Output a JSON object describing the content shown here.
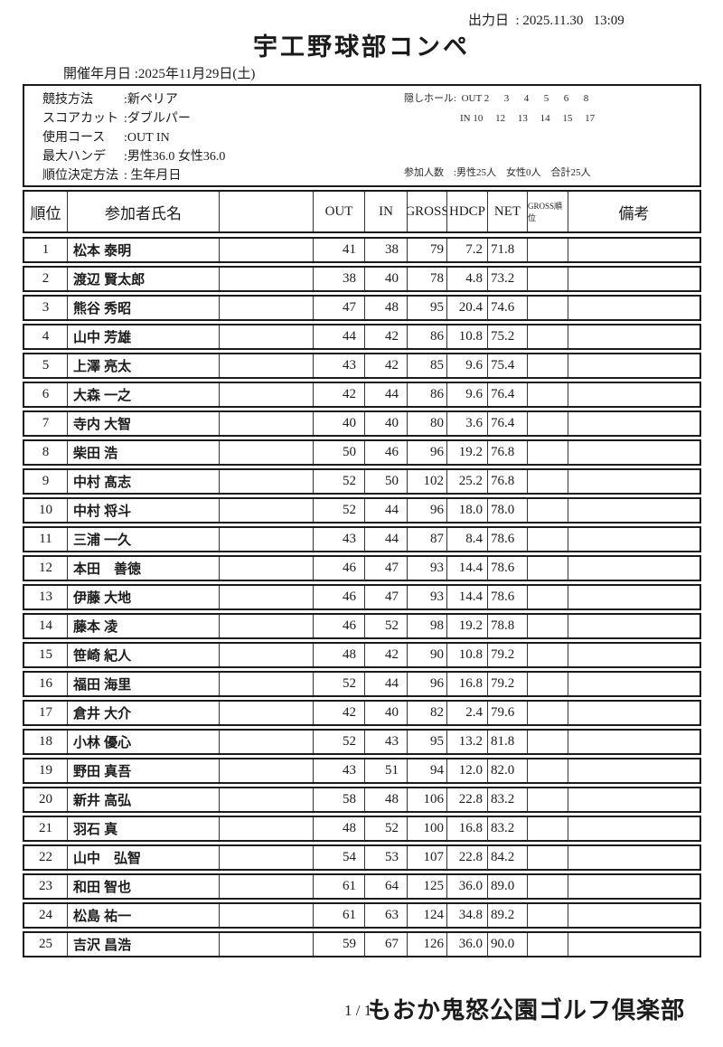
{
  "meta": {
    "print_date": "出力日  : 2025.11.30   13:09"
  },
  "title": "宇工野球部コンペ",
  "event_date": "開催年月日 :2025年11月29日(土)",
  "info": {
    "items": [
      {
        "label": "競技方法",
        "value": ":新ペリア"
      },
      {
        "label": "スコアカット",
        "value": ":ダブルパー"
      },
      {
        "label": "使用コース",
        "value": ":OUT IN"
      },
      {
        "label": "最大ハンデ",
        "value": ":男性36.0 女性36.0"
      },
      {
        "label": "順位決定方法",
        "value": ": 生年月日"
      }
    ],
    "hidden_holes": {
      "label": "隠しホール:",
      "out_line": "OUT 2      3      4      5      6      8",
      "in_line": "IN 10     12     13     14     15     17"
    },
    "participants": "参加人数　:男性25人　女性0人　合計25人"
  },
  "table": {
    "headers": {
      "rank": "順位",
      "name": "参加者氏名",
      "blank": "",
      "out": "OUT",
      "in": "IN",
      "gross": "GROSS",
      "hdcp": "HDCP",
      "net": "NET",
      "gross_rank": "GROSS順位",
      "remarks": "備考"
    },
    "rows": [
      {
        "rank": "1",
        "name": "松本 泰明",
        "out": "41",
        "in": "38",
        "gross": "79",
        "hdcp": "7.2",
        "net": "71.8"
      },
      {
        "rank": "2",
        "name": "渡辺 賢太郎",
        "out": "38",
        "in": "40",
        "gross": "78",
        "hdcp": "4.8",
        "net": "73.2"
      },
      {
        "rank": "3",
        "name": "熊谷 秀昭",
        "out": "47",
        "in": "48",
        "gross": "95",
        "hdcp": "20.4",
        "net": "74.6"
      },
      {
        "rank": "4",
        "name": "山中 芳雄",
        "out": "44",
        "in": "42",
        "gross": "86",
        "hdcp": "10.8",
        "net": "75.2"
      },
      {
        "rank": "5",
        "name": "上澤 亮太",
        "out": "43",
        "in": "42",
        "gross": "85",
        "hdcp": "9.6",
        "net": "75.4"
      },
      {
        "rank": "6",
        "name": "大森 一之",
        "out": "42",
        "in": "44",
        "gross": "86",
        "hdcp": "9.6",
        "net": "76.4"
      },
      {
        "rank": "7",
        "name": "寺内 大智",
        "out": "40",
        "in": "40",
        "gross": "80",
        "hdcp": "3.6",
        "net": "76.4"
      },
      {
        "rank": "8",
        "name": "柴田 浩",
        "out": "50",
        "in": "46",
        "gross": "96",
        "hdcp": "19.2",
        "net": "76.8"
      },
      {
        "rank": "9",
        "name": "中村 髙志",
        "out": "52",
        "in": "50",
        "gross": "102",
        "hdcp": "25.2",
        "net": "76.8"
      },
      {
        "rank": "10",
        "name": "中村 将斗",
        "out": "52",
        "in": "44",
        "gross": "96",
        "hdcp": "18.0",
        "net": "78.0"
      },
      {
        "rank": "11",
        "name": "三浦 一久",
        "out": "43",
        "in": "44",
        "gross": "87",
        "hdcp": "8.4",
        "net": "78.6"
      },
      {
        "rank": "12",
        "name": "本田　善徳",
        "out": "46",
        "in": "47",
        "gross": "93",
        "hdcp": "14.4",
        "net": "78.6"
      },
      {
        "rank": "13",
        "name": "伊藤 大地",
        "out": "46",
        "in": "47",
        "gross": "93",
        "hdcp": "14.4",
        "net": "78.6"
      },
      {
        "rank": "14",
        "name": "藤本 凌",
        "out": "46",
        "in": "52",
        "gross": "98",
        "hdcp": "19.2",
        "net": "78.8"
      },
      {
        "rank": "15",
        "name": "笹崎 紀人",
        "out": "48",
        "in": "42",
        "gross": "90",
        "hdcp": "10.8",
        "net": "79.2"
      },
      {
        "rank": "16",
        "name": "福田 海里",
        "out": "52",
        "in": "44",
        "gross": "96",
        "hdcp": "16.8",
        "net": "79.2"
      },
      {
        "rank": "17",
        "name": "倉井 大介",
        "out": "42",
        "in": "40",
        "gross": "82",
        "hdcp": "2.4",
        "net": "79.6"
      },
      {
        "rank": "18",
        "name": "小林 優心",
        "out": "52",
        "in": "43",
        "gross": "95",
        "hdcp": "13.2",
        "net": "81.8"
      },
      {
        "rank": "19",
        "name": "野田 真吾",
        "out": "43",
        "in": "51",
        "gross": "94",
        "hdcp": "12.0",
        "net": "82.0"
      },
      {
        "rank": "20",
        "name": "新井 高弘",
        "out": "58",
        "in": "48",
        "gross": "106",
        "hdcp": "22.8",
        "net": "83.2"
      },
      {
        "rank": "21",
        "name": "羽石 真",
        "out": "48",
        "in": "52",
        "gross": "100",
        "hdcp": "16.8",
        "net": "83.2"
      },
      {
        "rank": "22",
        "name": "山中　弘智",
        "out": "54",
        "in": "53",
        "gross": "107",
        "hdcp": "22.8",
        "net": "84.2"
      },
      {
        "rank": "23",
        "name": "和田 智也",
        "out": "61",
        "in": "64",
        "gross": "125",
        "hdcp": "36.0",
        "net": "89.0"
      },
      {
        "rank": "24",
        "name": "松島 祐一",
        "out": "61",
        "in": "63",
        "gross": "124",
        "hdcp": "34.8",
        "net": "89.2"
      },
      {
        "rank": "25",
        "name": "吉沢 昌浩",
        "out": "59",
        "in": "67",
        "gross": "126",
        "hdcp": "36.0",
        "net": "90.0"
      }
    ]
  },
  "footer": {
    "page": "1 / 1",
    "club": "もおか鬼怒公園ゴルフ倶楽部"
  }
}
